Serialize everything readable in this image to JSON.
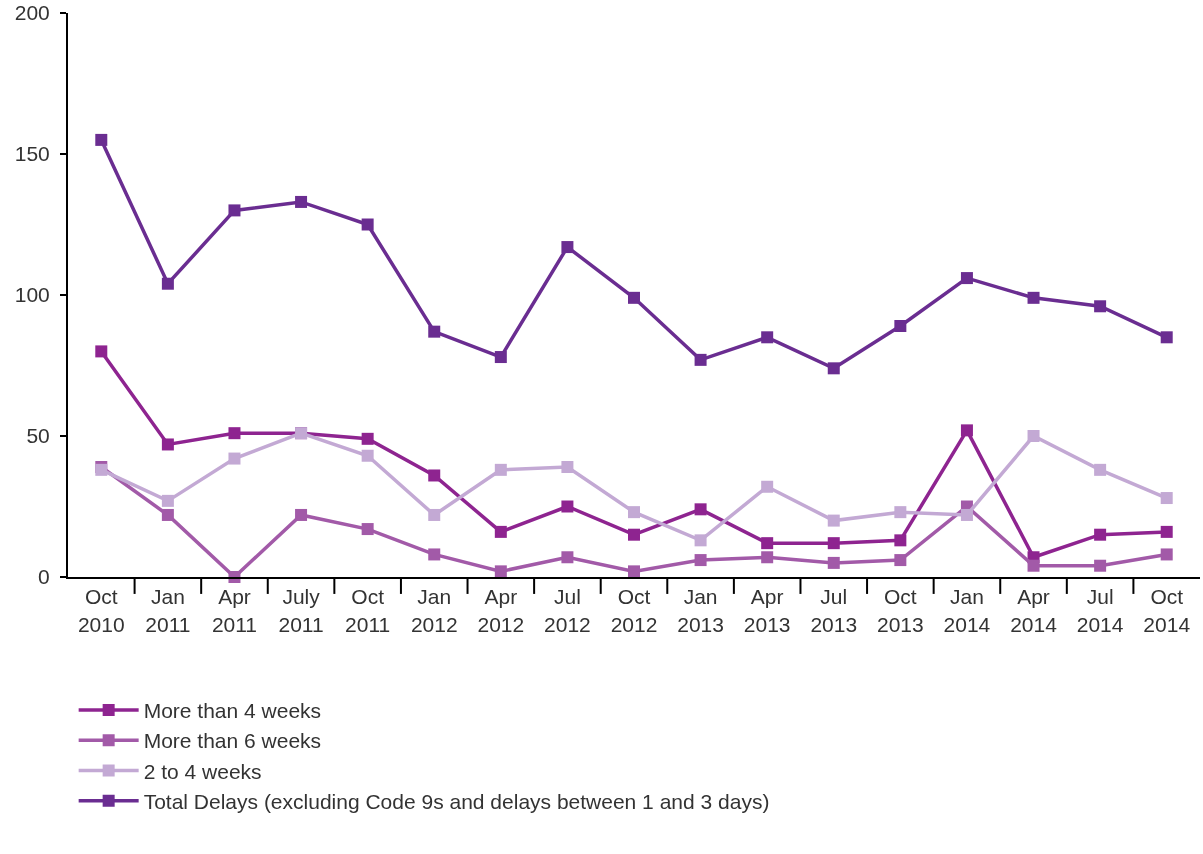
{
  "chart_data": {
    "type": "line",
    "categories": [
      "Oct 2010",
      "Jan 2011",
      "Apr 2011",
      "July 2011",
      "Oct 2011",
      "Jan 2012",
      "Apr 2012",
      "Jul 2012",
      "Oct 2012",
      "Jan 2013",
      "Apr 2013",
      "Jul 2013",
      "Oct 2013",
      "Jan 2014",
      "Apr 2014",
      "Jul 2014",
      "Oct 2014"
    ],
    "series": [
      {
        "name": "More than 4 weeks",
        "color": "#8e2490",
        "values": [
          80,
          47,
          51,
          51,
          49,
          36,
          16,
          25,
          15,
          24,
          12,
          12,
          13,
          52,
          7,
          15,
          16
        ]
      },
      {
        "name": "More than 6 weeks",
        "color": "#a25aa8",
        "values": [
          39,
          22,
          0,
          22,
          17,
          8,
          2,
          7,
          2,
          6,
          7,
          5,
          6,
          25,
          4,
          4,
          8
        ]
      },
      {
        "name": "2 to 4 weeks",
        "color": "#c3a9d4",
        "values": [
          38,
          27,
          42,
          51,
          43,
          22,
          38,
          39,
          23,
          13,
          32,
          20,
          23,
          22,
          50,
          38,
          28
        ]
      },
      {
        "name": "Total Delays (excluding Code 9s and delays between 1 and 3 days)",
        "color": "#6a2d91",
        "values": [
          155,
          104,
          130,
          133,
          125,
          87,
          78,
          117,
          99,
          77,
          85,
          74,
          89,
          106,
          99,
          96,
          85
        ]
      }
    ],
    "ylim": [
      0,
      200
    ],
    "yticks": [
      0,
      50,
      100,
      150,
      200
    ],
    "grid": false,
    "legend": "bottom",
    "marker": "square",
    "line_style": "solid"
  }
}
